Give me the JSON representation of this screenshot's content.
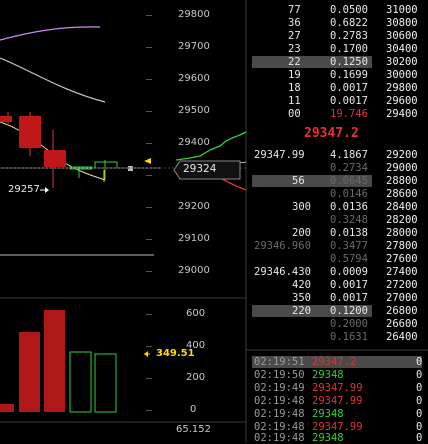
{
  "price_axis": {
    "ticks": [
      "29800",
      "29700",
      "29600",
      "29500",
      "29400",
      "29300",
      "29200",
      "29100",
      "29000"
    ]
  },
  "chart_labels": {
    "price_tag": "29324",
    "marker_label": "29257",
    "volume_tag": "349.51",
    "bottom_value": "65.152"
  },
  "volume_axis": {
    "ticks": [
      "600",
      "400",
      "200",
      "0"
    ]
  },
  "order_book": {
    "asks": [
      {
        "price": "",
        "qty": "0.0500",
        "level": "31000",
        "qty_prefix": "77",
        "qty_dim": "0"
      },
      {
        "price": "",
        "qty": "0.6822",
        "level": "30800",
        "qty_prefix": "36",
        "qty_dim": "0"
      },
      {
        "price": "",
        "qty": "0.2783",
        "level": "30600",
        "qty_prefix": "27",
        "qty_dim": "0"
      },
      {
        "price": "",
        "qty": "0.1700",
        "level": "30400",
        "qty_prefix": "23",
        "qty_dim": "0"
      },
      {
        "price": "",
        "qty": "0.1250",
        "level": "30200",
        "qty_prefix": "22",
        "qty_dim": "0"
      },
      {
        "price": "",
        "qty": "0.1699",
        "level": "30000",
        "qty_prefix": "19",
        "qty_dim": "0"
      },
      {
        "price": "",
        "qty": "0.0017",
        "level": "29800",
        "qty_prefix": "18",
        "qty_dim": "0"
      },
      {
        "price": "",
        "qty": "0.0017",
        "level": "29600",
        "qty_prefix": "11",
        "qty_dim": "0"
      },
      {
        "price": "",
        "qty": "19.746",
        "level": "29400",
        "qty_prefix": "00",
        "qty_dim": "0"
      }
    ],
    "last_price": "29347.2",
    "bids": [
      {
        "price": "29347.99",
        "qty": "4.1867",
        "level": "29200"
      },
      {
        "price": "",
        "qty": "0.2734",
        "level": "29000"
      },
      {
        "price": "56",
        "qty": "0.0645",
        "level": "28800"
      },
      {
        "price": "",
        "qty": "0.0146",
        "level": "28600"
      },
      {
        "price": "300",
        "qty": "0.0136",
        "level": "28400"
      },
      {
        "price": "",
        "qty": "0.3248",
        "level": "28200"
      },
      {
        "price": "200",
        "qty": "0.0138",
        "level": "28000"
      },
      {
        "price": "29346.960",
        "qty": "0.3477",
        "level": "27800"
      },
      {
        "price": "",
        "qty": "0.5794",
        "level": "27600"
      },
      {
        "price": "29346.430",
        "qty": "0.0009",
        "level": "27400"
      },
      {
        "price": "420",
        "qty": "0.0017",
        "level": "27200"
      },
      {
        "price": "350",
        "qty": "0.0017",
        "level": "27000"
      },
      {
        "price": "220",
        "qty": "0.1200",
        "level": "26800"
      },
      {
        "price": "",
        "qty": "0.2000",
        "level": "26600"
      },
      {
        "price": "",
        "qty": "0.1631",
        "level": "26400"
      }
    ]
  },
  "trades": [
    {
      "time": "02:19:51",
      "price": "29347.2",
      "side": "sell",
      "qty": "0"
    },
    {
      "time": "02:19:50",
      "price": "29348",
      "side": "buy",
      "qty": "0"
    },
    {
      "time": "02:19:49",
      "price": "29347.99",
      "side": "sell",
      "qty": "0"
    },
    {
      "time": "02:19:48",
      "price": "29347.99",
      "side": "sell",
      "qty": "0"
    },
    {
      "time": "02:19:48",
      "price": "29348",
      "side": "buy",
      "qty": "0"
    },
    {
      "time": "02:19:48",
      "price": "29347.99",
      "side": "sell",
      "qty": "0"
    },
    {
      "time": "02:19:48",
      "price": "29348",
      "side": "buy",
      "qty": "0"
    }
  ],
  "colors": {
    "bg": "#000000",
    "up": "#35d035",
    "down": "#e53232",
    "accent": "#ffd700",
    "ma_violet": "#c88cf0",
    "ma_grey": "#c8c8c8"
  }
}
